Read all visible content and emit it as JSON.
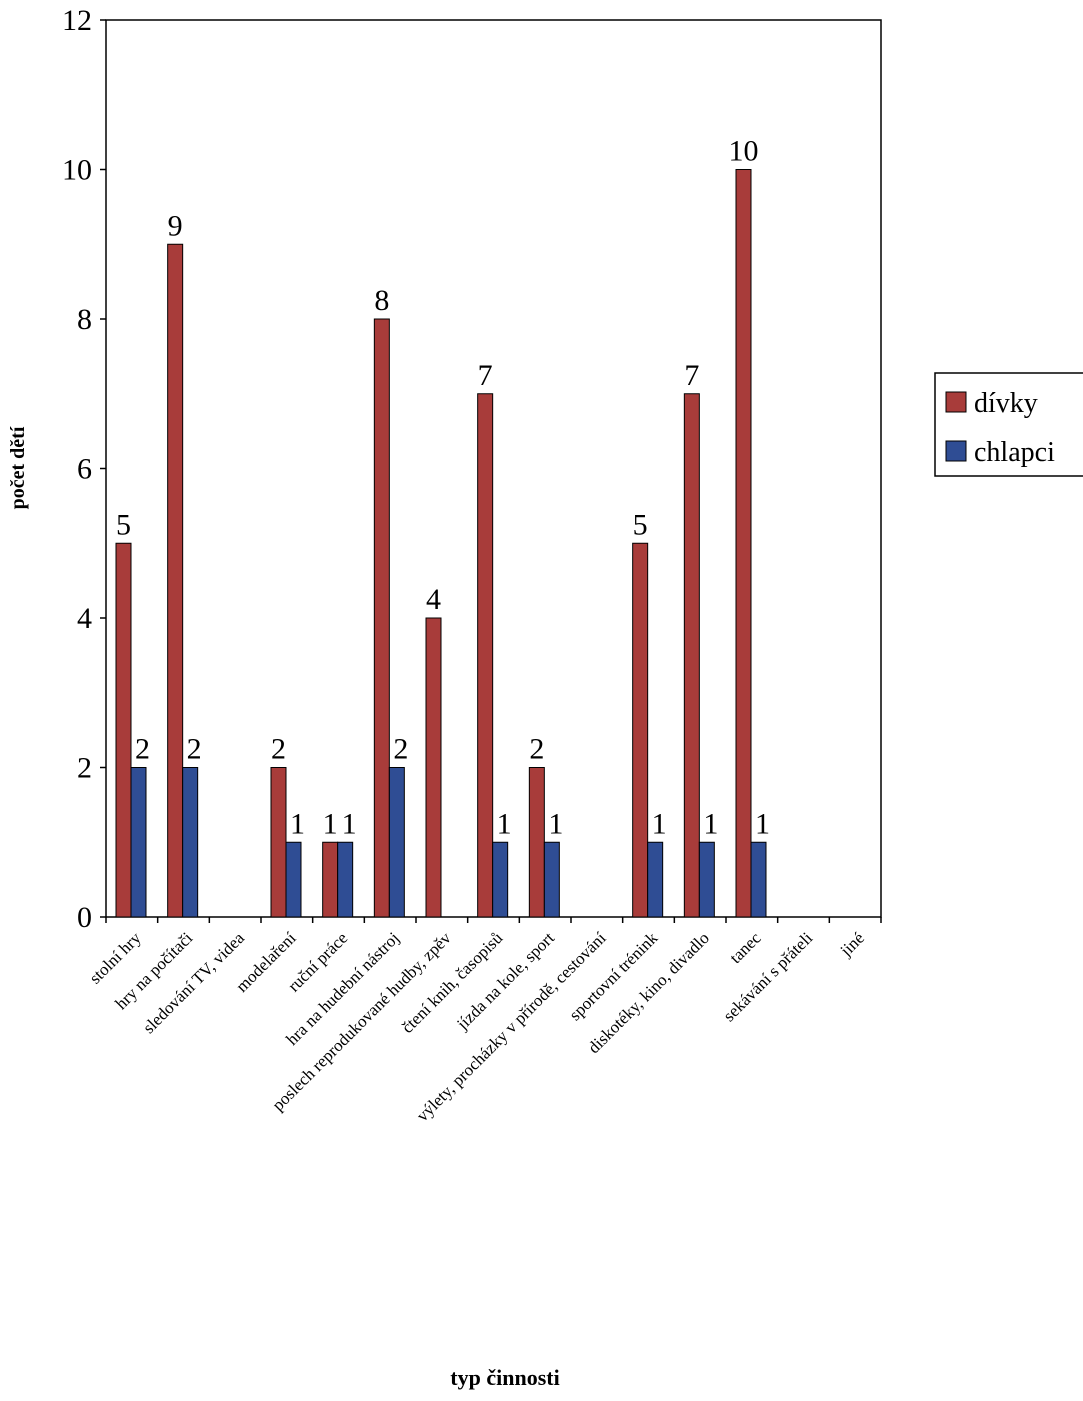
{
  "chart_data": {
    "type": "bar",
    "title": "",
    "xlabel": "typ činnosti",
    "ylabel": "počet dětí",
    "ylim": [
      0,
      12
    ],
    "yticks": [
      0,
      2,
      4,
      6,
      8,
      10,
      12
    ],
    "grid": false,
    "legend_position": "right",
    "categories": [
      "stolní hry",
      "hry na počítači",
      "sledování TV, videa",
      "modelaření",
      "ruční práce",
      "hra na hudební nástroj",
      "poslech reprodukované hudby, zpěv",
      "čtení knih, časopisů",
      "jízda na kole, sport",
      "výlety, procházky v přírodě, cestování",
      "sportovní trénink",
      "diskotéky, kino, divadlo",
      "tanec",
      "sekávání s přáteli",
      "jiné"
    ],
    "series": [
      {
        "name": "dívky",
        "color": "#a83c3a",
        "values": [
          5,
          9,
          0,
          2,
          1,
          8,
          4,
          7,
          2,
          0,
          5,
          7,
          10,
          0,
          0
        ]
      },
      {
        "name": "chlapci",
        "color": "#2f4d94",
        "values": [
          2,
          2,
          0,
          1,
          1,
          2,
          0,
          1,
          1,
          0,
          1,
          1,
          1,
          0,
          0
        ]
      }
    ],
    "data_labels": [
      [
        "5",
        "9",
        "",
        "2",
        "1",
        "8",
        "4",
        "7",
        "2",
        "",
        "5",
        "7",
        "10",
        "",
        ""
      ],
      [
        "2",
        "2",
        "",
        "1",
        "1",
        "2",
        "",
        "1",
        "1",
        "",
        "1",
        "1",
        "1",
        "",
        ""
      ]
    ]
  }
}
